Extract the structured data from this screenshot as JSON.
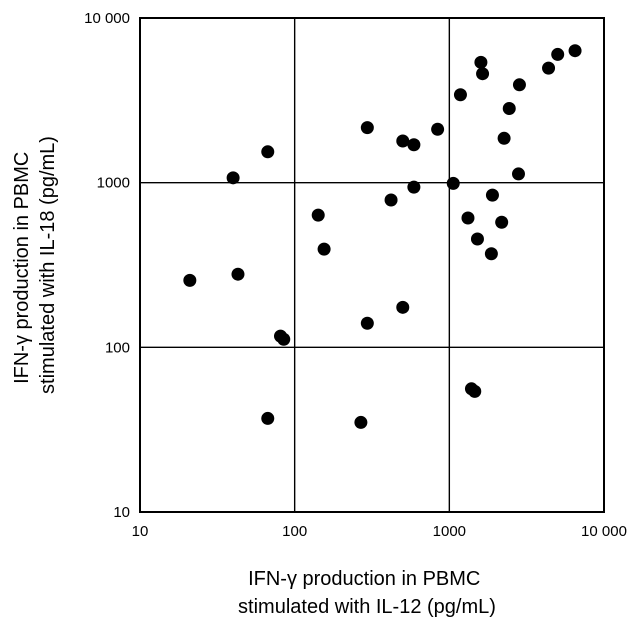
{
  "chart_data": {
    "type": "scatter",
    "xlabel_lines": [
      "IFN-γ production in PBMC",
      "stimulated with IL-12 (pg/mL)"
    ],
    "ylabel_lines": [
      "IFN-γ production in PBMC",
      "stimulated with IL-18 (pg/mL)"
    ],
    "x_scale": "log",
    "y_scale": "log",
    "xlim": [
      10,
      10000
    ],
    "ylim": [
      10,
      10000
    ],
    "x_ticks": [
      10,
      100,
      1000,
      10000
    ],
    "y_ticks": [
      10,
      100,
      1000,
      10000
    ],
    "x_tick_labels": [
      "10",
      "100",
      "1000",
      "10 000"
    ],
    "y_tick_labels": [
      "10",
      "100",
      "1000",
      "10 000"
    ],
    "grid": true,
    "colors": {
      "marker": "#000000",
      "grid": "#000000"
    },
    "points": [
      {
        "x": 21,
        "y": 255
      },
      {
        "x": 40,
        "y": 1070
      },
      {
        "x": 43,
        "y": 278
      },
      {
        "x": 67,
        "y": 1540
      },
      {
        "x": 67,
        "y": 37
      },
      {
        "x": 81,
        "y": 117
      },
      {
        "x": 85,
        "y": 112
      },
      {
        "x": 142,
        "y": 635
      },
      {
        "x": 155,
        "y": 395
      },
      {
        "x": 268,
        "y": 35
      },
      {
        "x": 295,
        "y": 2160
      },
      {
        "x": 295,
        "y": 140
      },
      {
        "x": 420,
        "y": 785
      },
      {
        "x": 500,
        "y": 1790
      },
      {
        "x": 500,
        "y": 175
      },
      {
        "x": 590,
        "y": 1700
      },
      {
        "x": 590,
        "y": 940
      },
      {
        "x": 840,
        "y": 2110
      },
      {
        "x": 1060,
        "y": 990
      },
      {
        "x": 1180,
        "y": 3420
      },
      {
        "x": 1320,
        "y": 610
      },
      {
        "x": 1390,
        "y": 56
      },
      {
        "x": 1460,
        "y": 54
      },
      {
        "x": 1520,
        "y": 455
      },
      {
        "x": 1600,
        "y": 5380
      },
      {
        "x": 1640,
        "y": 4590
      },
      {
        "x": 1870,
        "y": 370
      },
      {
        "x": 1900,
        "y": 840
      },
      {
        "x": 2180,
        "y": 575
      },
      {
        "x": 2260,
        "y": 1860
      },
      {
        "x": 2440,
        "y": 2820
      },
      {
        "x": 2800,
        "y": 1130
      },
      {
        "x": 2840,
        "y": 3930
      },
      {
        "x": 4380,
        "y": 4960
      },
      {
        "x": 5020,
        "y": 6010
      },
      {
        "x": 6500,
        "y": 6330
      }
    ]
  }
}
